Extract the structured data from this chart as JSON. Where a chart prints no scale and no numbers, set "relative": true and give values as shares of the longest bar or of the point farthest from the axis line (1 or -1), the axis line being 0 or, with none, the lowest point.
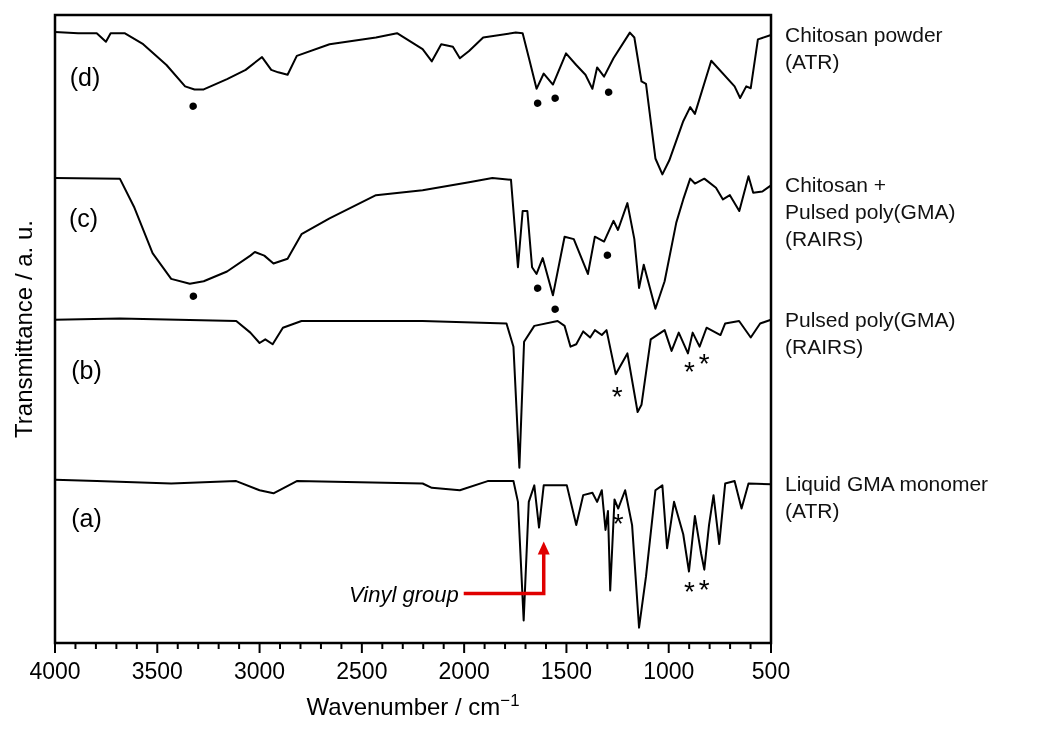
{
  "chart_data": {
    "type": "line",
    "relative": true,
    "xlabel": "Wavenumber / cm$^{−1}$",
    "ylabel": "Transmittance / a. u.",
    "xlim": [
      4000,
      500
    ],
    "xticks": [
      4000,
      {
        "value": 3900,
        "label": null
      },
      {
        "value": 3800,
        "label": null
      },
      {
        "value": 3700,
        "label": null
      },
      {
        "value": 3600,
        "label": null
      },
      3500,
      {
        "value": 3400,
        "label": null
      },
      {
        "value": 3300,
        "label": null
      },
      {
        "value": 3200,
        "label": null
      },
      {
        "value": 3100,
        "label": null
      },
      3000,
      {
        "value": 2900,
        "label": null
      },
      {
        "value": 2800,
        "label": null
      },
      {
        "value": 2700,
        "label": null
      },
      {
        "value": 2600,
        "label": null
      },
      2500,
      {
        "value": 2400,
        "label": null
      },
      {
        "value": 2300,
        "label": null
      },
      {
        "value": 2200,
        "label": null
      },
      {
        "value": 2100,
        "label": null
      },
      2000,
      {
        "value": 1900,
        "label": null
      },
      {
        "value": 1800,
        "label": null
      },
      {
        "value": 1700,
        "label": null
      },
      {
        "value": 1600,
        "label": null
      },
      1500,
      {
        "value": 1400,
        "label": null
      },
      {
        "value": 1300,
        "label": null
      },
      {
        "value": 1200,
        "label": null
      },
      {
        "value": 1100,
        "label": null
      },
      1000,
      {
        "value": 900,
        "label": null
      },
      {
        "value": 800,
        "label": null
      },
      {
        "value": 700,
        "label": null
      },
      {
        "value": 600,
        "label": null
      },
      500
    ],
    "marker": "none",
    "line_style": "solid",
    "series": [
      {
        "name": "Chitosan powder\n(ATR)",
        "color": "#000000",
        "x": [
          4000,
          3887,
          3796,
          3751,
          3728,
          3660,
          3569,
          3455,
          3364,
          3318,
          3273,
          3159,
          3068,
          2988,
          2943,
          2909,
          2863,
          2818,
          2658,
          2431,
          2328,
          2203,
          2158,
          2112,
          2055,
          2021,
          1976,
          1907,
          1748,
          1714,
          1680,
          1646,
          1611,
          1566,
          1502,
          1452,
          1407,
          1373,
          1350,
          1316,
          1270,
          1190,
          1168,
          1133,
          1111,
          1065,
          1031,
          997,
          929,
          895,
          872,
          792,
          678,
          651,
          621,
          599,
          564,
          500
        ],
        "values": [
          1.0,
          0.998,
          0.998,
          0.984,
          0.998,
          0.998,
          0.98,
          0.946,
          0.911,
          0.906,
          0.906,
          0.923,
          0.938,
          0.959,
          0.938,
          0.934,
          0.93,
          0.961,
          0.98,
          0.991,
          0.998,
          0.972,
          0.952,
          0.98,
          0.976,
          0.957,
          0.969,
          0.991,
          0.999,
          0.998,
          0.953,
          0.907,
          0.932,
          0.914,
          0.965,
          0.946,
          0.93,
          0.907,
          0.942,
          0.927,
          0.957,
          0.999,
          0.991,
          0.919,
          0.915,
          0.793,
          0.767,
          0.79,
          0.854,
          0.877,
          0.866,
          0.953,
          0.911,
          0.892,
          0.911,
          0.908,
          0.988,
          0.995
        ]
      },
      {
        "name": "Chitosan +\nPulsed poly(GMA)\n(RAIRS)",
        "color": "#000000",
        "x": [
          4000,
          3683,
          3614,
          3523,
          3432,
          3341,
          3273,
          3159,
          3045,
          3023,
          2977,
          2932,
          2863,
          2795,
          2658,
          2431,
          2203,
          1976,
          1862,
          1771,
          1737,
          1714,
          1691,
          1668,
          1646,
          1616,
          1566,
          1509,
          1464,
          1395,
          1361,
          1316,
          1270,
          1248,
          1202,
          1168,
          1145,
          1122,
          1065,
          1020,
          963,
          929,
          895,
          872,
          826,
          769,
          735,
          701,
          655,
          610,
          587,
          542,
          500
        ],
        "values": [
          0.761,
          0.76,
          0.714,
          0.638,
          0.596,
          0.588,
          0.592,
          0.608,
          0.634,
          0.64,
          0.634,
          0.621,
          0.629,
          0.669,
          0.695,
          0.733,
          0.741,
          0.754,
          0.761,
          0.758,
          0.615,
          0.707,
          0.707,
          0.615,
          0.604,
          0.63,
          0.569,
          0.665,
          0.661,
          0.604,
          0.665,
          0.657,
          0.691,
          0.676,
          0.72,
          0.661,
          0.581,
          0.619,
          0.547,
          0.592,
          0.688,
          0.726,
          0.76,
          0.752,
          0.76,
          0.745,
          0.726,
          0.733,
          0.707,
          0.764,
          0.737,
          0.739,
          0.749
        ]
      },
      {
        "name": "Pulsed poly(GMA)\n(RAIRS)",
        "color": "#000000",
        "x": [
          4000,
          3683,
          3114,
          3045,
          3000,
          2972,
          2936,
          2886,
          2795,
          2203,
          1793,
          1759,
          1730,
          1707,
          1657,
          1543,
          1509,
          1480,
          1452,
          1418,
          1384,
          1361,
          1327,
          1304,
          1259,
          1202,
          1152,
          1133,
          1088,
          1020,
          986,
          951,
          906,
          883,
          849,
          815,
          747,
          724,
          656,
          599,
          553,
          500
        ],
        "values": [
          0.529,
          0.531,
          0.527,
          0.508,
          0.491,
          0.497,
          0.489,
          0.516,
          0.527,
          0.527,
          0.523,
          0.485,
          0.287,
          0.493,
          0.519,
          0.527,
          0.519,
          0.485,
          0.489,
          0.51,
          0.5,
          0.512,
          0.504,
          0.512,
          0.44,
          0.474,
          0.378,
          0.39,
          0.497,
          0.512,
          0.478,
          0.508,
          0.474,
          0.508,
          0.485,
          0.516,
          0.504,
          0.523,
          0.527,
          0.5,
          0.523,
          0.529
        ]
      },
      {
        "name": "Liquid GMA monomer\n(ATR)",
        "color": "#000000",
        "x": [
          4000,
          3796,
          3432,
          3114,
          3000,
          2932,
          2818,
          2203,
          2158,
          2021,
          1885,
          1759,
          1737,
          1709,
          1684,
          1657,
          1634,
          1611,
          1498,
          1452,
          1418,
          1373,
          1350,
          1327,
          1309,
          1297,
          1286,
          1265,
          1247,
          1213,
          1179,
          1145,
          1111,
          1065,
          1031,
          1008,
          974,
          929,
          901,
          872,
          842,
          826,
          803,
          781,
          753,
          724,
          678,
          644,
          610,
          500
        ],
        "values": [
          0.267,
          0.265,
          0.261,
          0.265,
          0.25,
          0.245,
          0.265,
          0.261,
          0.254,
          0.25,
          0.265,
          0.265,
          0.231,
          0.037,
          0.231,
          0.258,
          0.189,
          0.258,
          0.258,
          0.193,
          0.242,
          0.246,
          0.231,
          0.25,
          0.185,
          0.216,
          0.086,
          0.235,
          0.22,
          0.25,
          0.193,
          0.025,
          0.109,
          0.25,
          0.258,
          0.155,
          0.231,
          0.178,
          0.117,
          0.208,
          0.147,
          0.12,
          0.193,
          0.242,
          0.162,
          0.261,
          0.265,
          0.22,
          0.261,
          0.26
        ]
      }
    ],
    "annotations": [
      "(d)",
      "(c)",
      "(b)",
      "(a)",
      "•",
      "•",
      "•",
      "•",
      "•",
      "•",
      "•",
      "•",
      "*",
      "*",
      "*",
      "*",
      "*",
      "*",
      "Vinyl group"
    ]
  }
}
